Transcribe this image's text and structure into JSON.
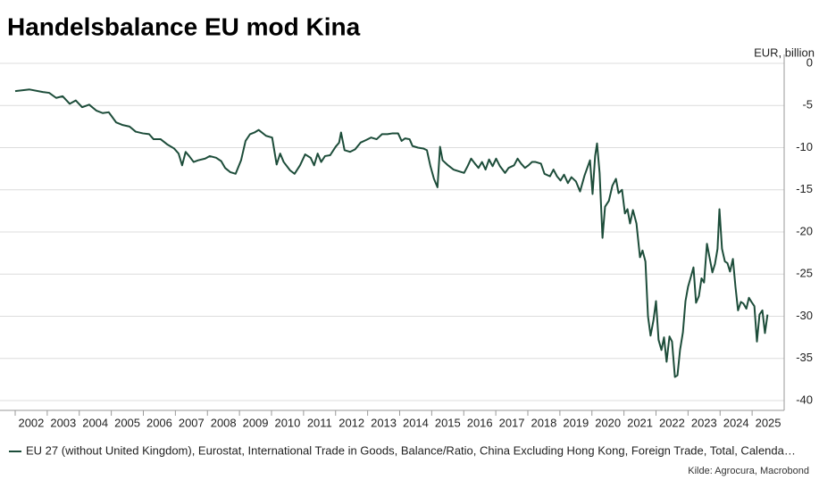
{
  "chart_data": {
    "type": "line",
    "title": "Handelsbalance EU mod Kina",
    "y_axis_label": "EUR, billion",
    "source": "Kilde: Agrocura, Macrobond",
    "xlim": [
      2002,
      2026
    ],
    "xticks": [
      2002,
      2003,
      2004,
      2005,
      2006,
      2007,
      2008,
      2009,
      2010,
      2011,
      2012,
      2013,
      2014,
      2015,
      2016,
      2017,
      2018,
      2019,
      2020,
      2021,
      2022,
      2023,
      2024,
      2025
    ],
    "ylim": [
      -40,
      0
    ],
    "yticks": [
      0,
      -5,
      -10,
      -15,
      -20,
      -25,
      -30,
      -35,
      -40
    ],
    "grid": true,
    "legend": "bottom",
    "x": [
      2002.0,
      2002.45,
      2002.86,
      2003.06,
      2003.28,
      2003.48,
      2003.7,
      2003.89,
      2004.09,
      2004.31,
      2004.53,
      2004.73,
      2004.92,
      2005.15,
      2005.34,
      2005.57,
      2005.76,
      2005.98,
      2006.18,
      2006.32,
      2006.54,
      2006.74,
      2006.96,
      2007.1,
      2007.21,
      2007.32,
      2007.43,
      2007.57,
      2007.71,
      2007.93,
      2008.07,
      2008.27,
      2008.43,
      2008.55,
      2008.71,
      2008.88,
      2009.05,
      2009.19,
      2009.33,
      2009.47,
      2009.6,
      2009.83,
      2010.02,
      2010.16,
      2010.27,
      2010.38,
      2010.58,
      2010.72,
      2010.89,
      2011.05,
      2011.22,
      2011.33,
      2011.44,
      2011.55,
      2011.67,
      2011.83,
      2012.0,
      2012.11,
      2012.17,
      2012.28,
      2012.45,
      2012.61,
      2012.78,
      2012.95,
      2013.11,
      2013.28,
      2013.45,
      2013.62,
      2013.78,
      2013.95,
      2014.06,
      2014.17,
      2014.31,
      2014.4,
      2014.57,
      2014.74,
      2014.85,
      2014.96,
      2015.07,
      2015.18,
      2015.26,
      2015.34,
      2015.51,
      2015.68,
      2015.84,
      2016.01,
      2016.12,
      2016.23,
      2016.35,
      2016.46,
      2016.57,
      2016.68,
      2016.79,
      2016.9,
      2017.01,
      2017.13,
      2017.29,
      2017.4,
      2017.57,
      2017.68,
      2017.79,
      2017.91,
      2018.02,
      2018.13,
      2018.24,
      2018.41,
      2018.52,
      2018.69,
      2018.8,
      2018.91,
      2019.02,
      2019.13,
      2019.25,
      2019.36,
      2019.5,
      2019.63,
      2019.77,
      2019.94,
      2020.02,
      2020.1,
      2020.16,
      2020.24,
      2020.33,
      2020.41,
      2020.53,
      2020.64,
      2020.75,
      2020.83,
      2020.94,
      2021.03,
      2021.11,
      2021.19,
      2021.28,
      2021.39,
      2021.5,
      2021.58,
      2021.67,
      2021.75,
      2021.83,
      2021.92,
      2022.0,
      2022.08,
      2022.17,
      2022.25,
      2022.33,
      2022.42,
      2022.5,
      2022.59,
      2022.67,
      2022.75,
      2022.84,
      2022.92,
      2023.0,
      2023.09,
      2023.17,
      2023.25,
      2023.34,
      2023.42,
      2023.5,
      2023.59,
      2023.67,
      2023.76,
      2023.84,
      2023.92,
      2023.98,
      2024.06,
      2024.15,
      2024.23,
      2024.31,
      2024.4,
      2024.48,
      2024.56,
      2024.65,
      2024.73,
      2024.82,
      2024.9,
      2024.98,
      2025.07,
      2025.15,
      2025.23,
      2025.32,
      2025.4,
      2025.48
    ],
    "series": [
      {
        "name": "EU 27 (without United Kingdom), Eurostat, International Trade in Goods, Balance/Ratio, China Excluding Hong Kong, Foreign Trade, Total, Calenda…",
        "color": "#1d4d3a",
        "values": [
          -3.3,
          -3.1,
          -3.4,
          -3.5,
          -4.1,
          -3.9,
          -4.8,
          -4.4,
          -5.2,
          -4.9,
          -5.6,
          -5.9,
          -5.8,
          -7.0,
          -7.3,
          -7.5,
          -8.1,
          -8.3,
          -8.4,
          -9.0,
          -9.0,
          -9.6,
          -10.1,
          -10.7,
          -12.1,
          -10.5,
          -11.0,
          -11.7,
          -11.5,
          -11.3,
          -11.0,
          -11.2,
          -11.6,
          -12.4,
          -12.9,
          -13.1,
          -11.5,
          -9.2,
          -8.4,
          -8.2,
          -7.9,
          -8.6,
          -8.8,
          -12.0,
          -10.7,
          -11.7,
          -12.7,
          -13.1,
          -12.1,
          -10.8,
          -11.2,
          -12.1,
          -10.7,
          -11.7,
          -11.0,
          -10.9,
          -9.9,
          -9.4,
          -8.2,
          -10.3,
          -10.5,
          -10.2,
          -9.4,
          -9.1,
          -8.8,
          -9.0,
          -8.4,
          -8.4,
          -8.3,
          -8.3,
          -9.2,
          -8.9,
          -9.0,
          -9.8,
          -10.0,
          -10.1,
          -10.3,
          -12.2,
          -13.7,
          -14.7,
          -9.9,
          -11.5,
          -12.1,
          -12.6,
          -12.8,
          -13.0,
          -12.2,
          -11.3,
          -11.9,
          -12.4,
          -11.7,
          -12.6,
          -11.4,
          -12.2,
          -11.3,
          -12.2,
          -13.0,
          -12.4,
          -12.1,
          -11.3,
          -11.9,
          -12.4,
          -12.1,
          -11.7,
          -11.7,
          -11.9,
          -13.1,
          -13.4,
          -12.6,
          -13.4,
          -13.9,
          -13.2,
          -14.2,
          -13.5,
          -14.0,
          -15.2,
          -13.3,
          -11.5,
          -15.5,
          -11.0,
          -9.5,
          -13.0,
          -20.7,
          -17.0,
          -16.3,
          -14.5,
          -13.7,
          -15.4,
          -15.0,
          -17.8,
          -17.3,
          -19.0,
          -17.4,
          -19.0,
          -23.0,
          -22.2,
          -23.5,
          -30.0,
          -32.3,
          -30.5,
          -28.2,
          -32.8,
          -34.0,
          -32.5,
          -35.4,
          -32.4,
          -33.0,
          -37.2,
          -37.0,
          -34.0,
          -31.9,
          -28.2,
          -26.5,
          -25.3,
          -24.2,
          -28.4,
          -27.6,
          -25.5,
          -26.0,
          -21.4,
          -23.0,
          -24.8,
          -23.8,
          -22.0,
          -17.3,
          -22.0,
          -23.5,
          -23.7,
          -24.7,
          -23.2,
          -26.5,
          -29.3,
          -28.3,
          -28.5,
          -29.1,
          -27.8,
          -28.3,
          -28.8,
          -33.0,
          -29.8,
          -29.3,
          -32.0,
          -29.8
        ]
      }
    ]
  }
}
